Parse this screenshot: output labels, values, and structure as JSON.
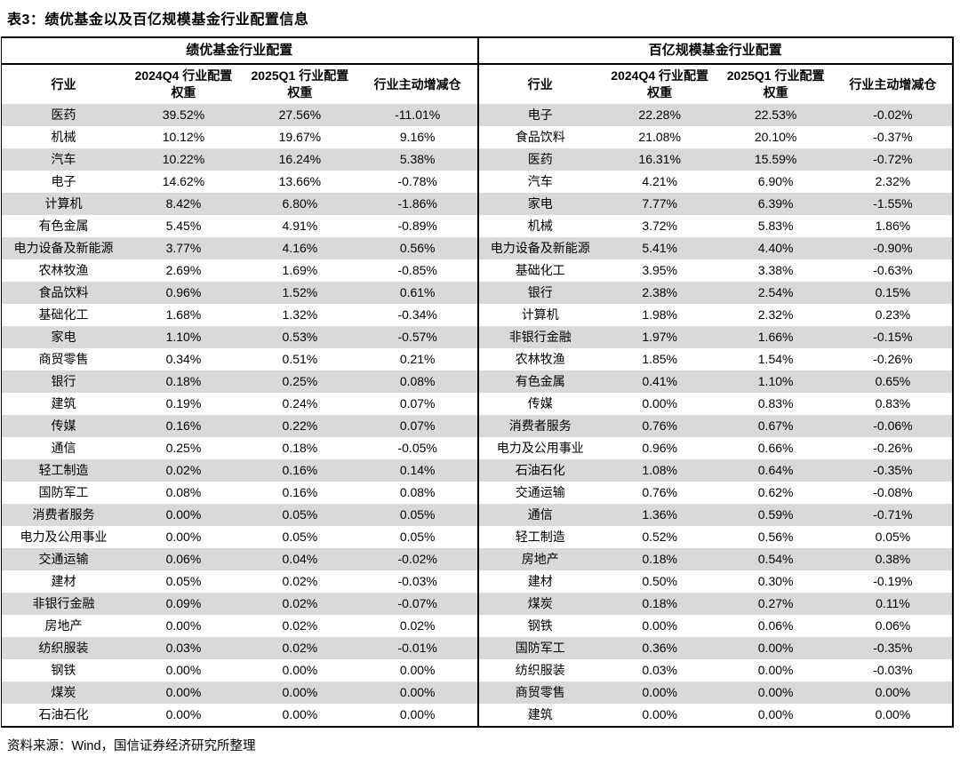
{
  "title": "表3：绩优基金以及百亿规模基金行业配置信息",
  "source_note": "资料来源：Wind，国信证券经济研究所整理",
  "colors": {
    "stripe": "#d9d9d9",
    "rule": "#000000",
    "text": "#000000",
    "background": "#ffffff"
  },
  "tables": [
    {
      "group_header": "绩优基金行业配置",
      "columns": [
        "行业",
        "2024Q4 行业配置\n权重",
        "2025Q1 行业配置\n权重",
        "行业主动增减仓"
      ],
      "rows": [
        [
          "医药",
          "39.52%",
          "27.56%",
          "-11.01%"
        ],
        [
          "机械",
          "10.12%",
          "19.67%",
          "9.16%"
        ],
        [
          "汽车",
          "10.22%",
          "16.24%",
          "5.38%"
        ],
        [
          "电子",
          "14.62%",
          "13.66%",
          "-0.78%"
        ],
        [
          "计算机",
          "8.42%",
          "6.80%",
          "-1.86%"
        ],
        [
          "有色金属",
          "5.45%",
          "4.91%",
          "-0.89%"
        ],
        [
          "电力设备及新能源",
          "3.77%",
          "4.16%",
          "0.56%"
        ],
        [
          "农林牧渔",
          "2.69%",
          "1.69%",
          "-0.85%"
        ],
        [
          "食品饮料",
          "0.96%",
          "1.52%",
          "0.61%"
        ],
        [
          "基础化工",
          "1.68%",
          "1.32%",
          "-0.34%"
        ],
        [
          "家电",
          "1.10%",
          "0.53%",
          "-0.57%"
        ],
        [
          "商贸零售",
          "0.34%",
          "0.51%",
          "0.21%"
        ],
        [
          "银行",
          "0.18%",
          "0.25%",
          "0.08%"
        ],
        [
          "建筑",
          "0.19%",
          "0.24%",
          "0.07%"
        ],
        [
          "传媒",
          "0.16%",
          "0.22%",
          "0.07%"
        ],
        [
          "通信",
          "0.25%",
          "0.18%",
          "-0.05%"
        ],
        [
          "轻工制造",
          "0.02%",
          "0.16%",
          "0.14%"
        ],
        [
          "国防军工",
          "0.08%",
          "0.16%",
          "0.08%"
        ],
        [
          "消费者服务",
          "0.00%",
          "0.05%",
          "0.05%"
        ],
        [
          "电力及公用事业",
          "0.00%",
          "0.05%",
          "0.05%"
        ],
        [
          "交通运输",
          "0.06%",
          "0.04%",
          "-0.02%"
        ],
        [
          "建材",
          "0.05%",
          "0.02%",
          "-0.03%"
        ],
        [
          "非银行金融",
          "0.09%",
          "0.02%",
          "-0.07%"
        ],
        [
          "房地产",
          "0.00%",
          "0.02%",
          "0.02%"
        ],
        [
          "纺织服装",
          "0.03%",
          "0.02%",
          "-0.01%"
        ],
        [
          "钢铁",
          "0.00%",
          "0.00%",
          "0.00%"
        ],
        [
          "煤炭",
          "0.00%",
          "0.00%",
          "0.00%"
        ],
        [
          "石油石化",
          "0.00%",
          "0.00%",
          "0.00%"
        ]
      ]
    },
    {
      "group_header": "百亿规模基金行业配置",
      "columns": [
        "行业",
        "2024Q4 行业配置\n权重",
        "2025Q1 行业配置\n权重",
        "行业主动增减仓"
      ],
      "rows": [
        [
          "电子",
          "22.28%",
          "22.53%",
          "-0.02%"
        ],
        [
          "食品饮料",
          "21.08%",
          "20.10%",
          "-0.37%"
        ],
        [
          "医药",
          "16.31%",
          "15.59%",
          "-0.72%"
        ],
        [
          "汽车",
          "4.21%",
          "6.90%",
          "2.32%"
        ],
        [
          "家电",
          "7.77%",
          "6.39%",
          "-1.55%"
        ],
        [
          "机械",
          "3.72%",
          "5.83%",
          "1.86%"
        ],
        [
          "电力设备及新能源",
          "5.41%",
          "4.40%",
          "-0.90%"
        ],
        [
          "基础化工",
          "3.95%",
          "3.38%",
          "-0.63%"
        ],
        [
          "银行",
          "2.38%",
          "2.54%",
          "0.15%"
        ],
        [
          "计算机",
          "1.98%",
          "2.32%",
          "0.23%"
        ],
        [
          "非银行金融",
          "1.97%",
          "1.66%",
          "-0.15%"
        ],
        [
          "农林牧渔",
          "1.85%",
          "1.54%",
          "-0.26%"
        ],
        [
          "有色金属",
          "0.41%",
          "1.10%",
          "0.65%"
        ],
        [
          "传媒",
          "0.00%",
          "0.83%",
          "0.83%"
        ],
        [
          "消费者服务",
          "0.76%",
          "0.67%",
          "-0.06%"
        ],
        [
          "电力及公用事业",
          "0.96%",
          "0.66%",
          "-0.26%"
        ],
        [
          "石油石化",
          "1.08%",
          "0.64%",
          "-0.35%"
        ],
        [
          "交通运输",
          "0.76%",
          "0.62%",
          "-0.08%"
        ],
        [
          "通信",
          "1.36%",
          "0.59%",
          "-0.71%"
        ],
        [
          "轻工制造",
          "0.52%",
          "0.56%",
          "0.05%"
        ],
        [
          "房地产",
          "0.18%",
          "0.54%",
          "0.38%"
        ],
        [
          "建材",
          "0.50%",
          "0.30%",
          "-0.19%"
        ],
        [
          "煤炭",
          "0.18%",
          "0.27%",
          "0.11%"
        ],
        [
          "钢铁",
          "0.00%",
          "0.06%",
          "0.06%"
        ],
        [
          "国防军工",
          "0.36%",
          "0.00%",
          "-0.35%"
        ],
        [
          "纺织服装",
          "0.03%",
          "0.00%",
          "-0.03%"
        ],
        [
          "商贸零售",
          "0.00%",
          "0.00%",
          "0.00%"
        ],
        [
          "建筑",
          "0.00%",
          "0.00%",
          "0.00%"
        ]
      ]
    }
  ]
}
